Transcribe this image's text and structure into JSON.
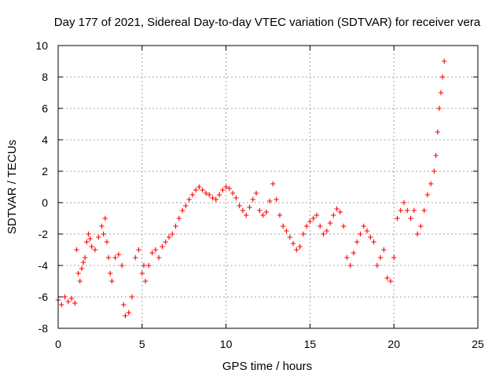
{
  "chart_data": {
    "type": "scatter",
    "title": "Day 177 of 2021, Sidereal Day-to-day VTEC variation (SDTVAR) for receiver vera",
    "xlabel": "GPS time / hours",
    "ylabel": "SDTVAR / TECUs",
    "xlim": [
      0,
      25
    ],
    "ylim": [
      -8,
      10
    ],
    "xticks": [
      0,
      5,
      10,
      15,
      20,
      25
    ],
    "yticks": [
      -8,
      -6,
      -4,
      -2,
      0,
      2,
      4,
      6,
      8,
      10
    ],
    "grid": true,
    "marker": "plus",
    "color": "#ff0000",
    "series": [
      {
        "name": "SDTVAR",
        "x": [
          0.0,
          0.2,
          0.4,
          0.6,
          0.8,
          1.0,
          1.1,
          1.2,
          1.3,
          1.4,
          1.5,
          1.6,
          1.7,
          1.8,
          1.9,
          2.0,
          2.2,
          2.4,
          2.6,
          2.7,
          2.8,
          2.9,
          3.0,
          3.1,
          3.2,
          3.4,
          3.6,
          3.8,
          3.9,
          4.0,
          4.2,
          4.4,
          4.6,
          4.8,
          5.0,
          5.1,
          5.2,
          5.4,
          5.6,
          5.8,
          6.0,
          6.2,
          6.4,
          6.6,
          6.8,
          7.0,
          7.2,
          7.4,
          7.6,
          7.8,
          8.0,
          8.2,
          8.4,
          8.6,
          8.8,
          9.0,
          9.2,
          9.4,
          9.6,
          9.8,
          10.0,
          10.2,
          10.4,
          10.6,
          10.8,
          11.0,
          11.2,
          11.4,
          11.6,
          11.8,
          12.0,
          12.2,
          12.4,
          12.6,
          12.8,
          13.0,
          13.2,
          13.4,
          13.6,
          13.8,
          14.0,
          14.2,
          14.4,
          14.6,
          14.8,
          15.0,
          15.2,
          15.4,
          15.6,
          15.8,
          16.0,
          16.2,
          16.4,
          16.6,
          16.8,
          17.0,
          17.2,
          17.4,
          17.6,
          17.8,
          18.0,
          18.2,
          18.4,
          18.6,
          18.8,
          19.0,
          19.2,
          19.4,
          19.6,
          19.8,
          20.0,
          20.2,
          20.4,
          20.6,
          20.8,
          21.0,
          21.2,
          21.4,
          21.6,
          21.8,
          22.0,
          22.2,
          22.4,
          22.5,
          22.6,
          22.7,
          22.8,
          22.9,
          23.0
        ],
        "y": [
          -6.2,
          -6.5,
          -6.0,
          -6.3,
          -6.1,
          -6.4,
          -3.0,
          -4.5,
          -5.0,
          -4.2,
          -3.8,
          -3.5,
          -2.5,
          -2.0,
          -2.3,
          -2.8,
          -3.0,
          -2.2,
          -1.5,
          -2.0,
          -1.0,
          -2.5,
          -3.5,
          -4.5,
          -5.0,
          -3.5,
          -3.3,
          -4.0,
          -6.5,
          -7.2,
          -7.0,
          -6.0,
          -3.5,
          -3.0,
          -4.5,
          -4.0,
          -5.0,
          -4.0,
          -3.2,
          -3.0,
          -3.5,
          -2.8,
          -2.5,
          -2.2,
          -2.0,
          -1.5,
          -1.0,
          -0.5,
          -0.2,
          0.2,
          0.5,
          0.8,
          1.0,
          0.8,
          0.6,
          0.5,
          0.3,
          0.2,
          0.5,
          0.8,
          1.0,
          0.9,
          0.6,
          0.3,
          -0.2,
          -0.5,
          -0.8,
          -0.3,
          0.2,
          0.6,
          -0.5,
          -0.8,
          -0.6,
          0.1,
          1.2,
          0.2,
          -0.8,
          -1.5,
          -1.8,
          -2.2,
          -2.6,
          -3.0,
          -2.8,
          -2.0,
          -1.5,
          -1.2,
          -1.0,
          -0.8,
          -1.5,
          -2.0,
          -1.8,
          -1.3,
          -0.8,
          -0.4,
          -0.6,
          -1.5,
          -3.5,
          -4.0,
          -3.2,
          -2.5,
          -2.0,
          -1.5,
          -1.8,
          -2.2,
          -2.5,
          -4.0,
          -3.5,
          -3.0,
          -4.8,
          -5.0,
          -3.5,
          -1.0,
          -0.5,
          0.0,
          -0.5,
          -1.0,
          -0.5,
          -2.0,
          -1.5,
          -0.5,
          0.5,
          1.2,
          2.0,
          3.0,
          4.5,
          6.0,
          7.0,
          8.0,
          9.0
        ]
      }
    ]
  }
}
